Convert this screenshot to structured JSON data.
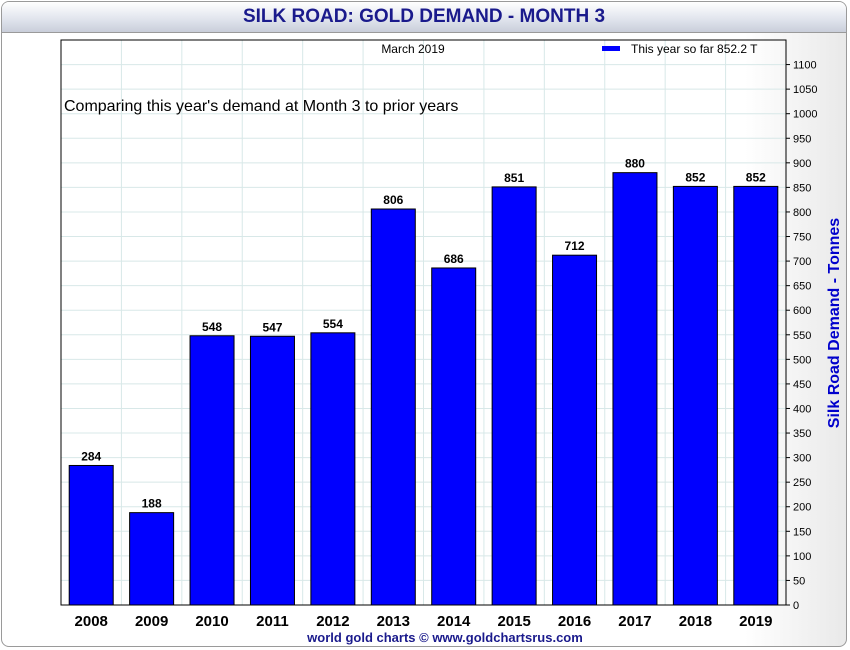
{
  "title": "SILK ROAD: GOLD DEMAND - MONTH 3",
  "footer": "world gold charts © www.goldchartsrus.com",
  "colors": {
    "bar": "#0000ff",
    "title": "#1a1a8c",
    "axis_label": "#0000cc",
    "grid": "#d8e8e8"
  },
  "chart_data": {
    "type": "bar",
    "title": "SILK ROAD: GOLD DEMAND - MONTH 3",
    "date_label": "March 2019",
    "annotation": "Comparing this year's demand at Month 3 to prior years",
    "legend": {
      "label": "This year so far 852.2 T",
      "position": "top-right"
    },
    "xlabel": "",
    "ylabel": "Silk Road Demand - Tonnes",
    "categories": [
      "2008",
      "2009",
      "2010",
      "2011",
      "2012",
      "2013",
      "2014",
      "2015",
      "2016",
      "2017",
      "2018",
      "2019"
    ],
    "values": [
      284,
      188,
      548,
      547,
      554,
      806,
      686,
      851,
      712,
      880,
      852,
      852
    ],
    "ylim": [
      0,
      1150
    ],
    "yticks": [
      "0",
      "50",
      "100",
      "150",
      "200",
      "250",
      "300",
      "350",
      "400",
      "450",
      "500",
      "550",
      "600",
      "650",
      "700",
      "750",
      "800",
      "850",
      "900",
      "950",
      "1000",
      "1050",
      "1100"
    ],
    "y_axis_side": "right",
    "grid": true
  }
}
